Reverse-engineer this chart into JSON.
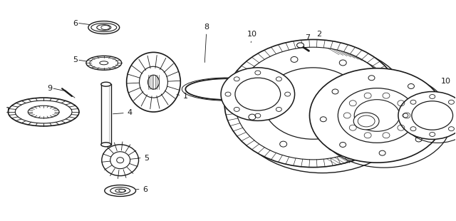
{
  "background_color": "#ffffff",
  "line_color": "#1a1a1a",
  "fig_width": 6.4,
  "fig_height": 3.1,
  "dpi": 100,
  "label_fontsize": 7.5
}
